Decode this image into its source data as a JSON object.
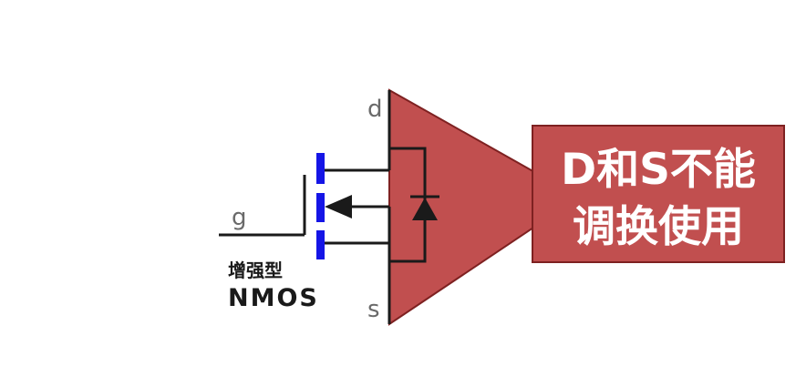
{
  "diagram": {
    "pins": {
      "drain": "d",
      "source": "s",
      "gate": "g"
    },
    "device_type": {
      "line1": "增强型",
      "line2": "NMOS"
    },
    "callout": {
      "line1": "D和S不能",
      "line2": "调换使用"
    },
    "colors": {
      "channel": "#1515e6",
      "callout_fill": "#c14f4f",
      "callout_border": "#7e2121",
      "callout_text": "#ffffff",
      "wire": "#1a1a1a"
    }
  }
}
